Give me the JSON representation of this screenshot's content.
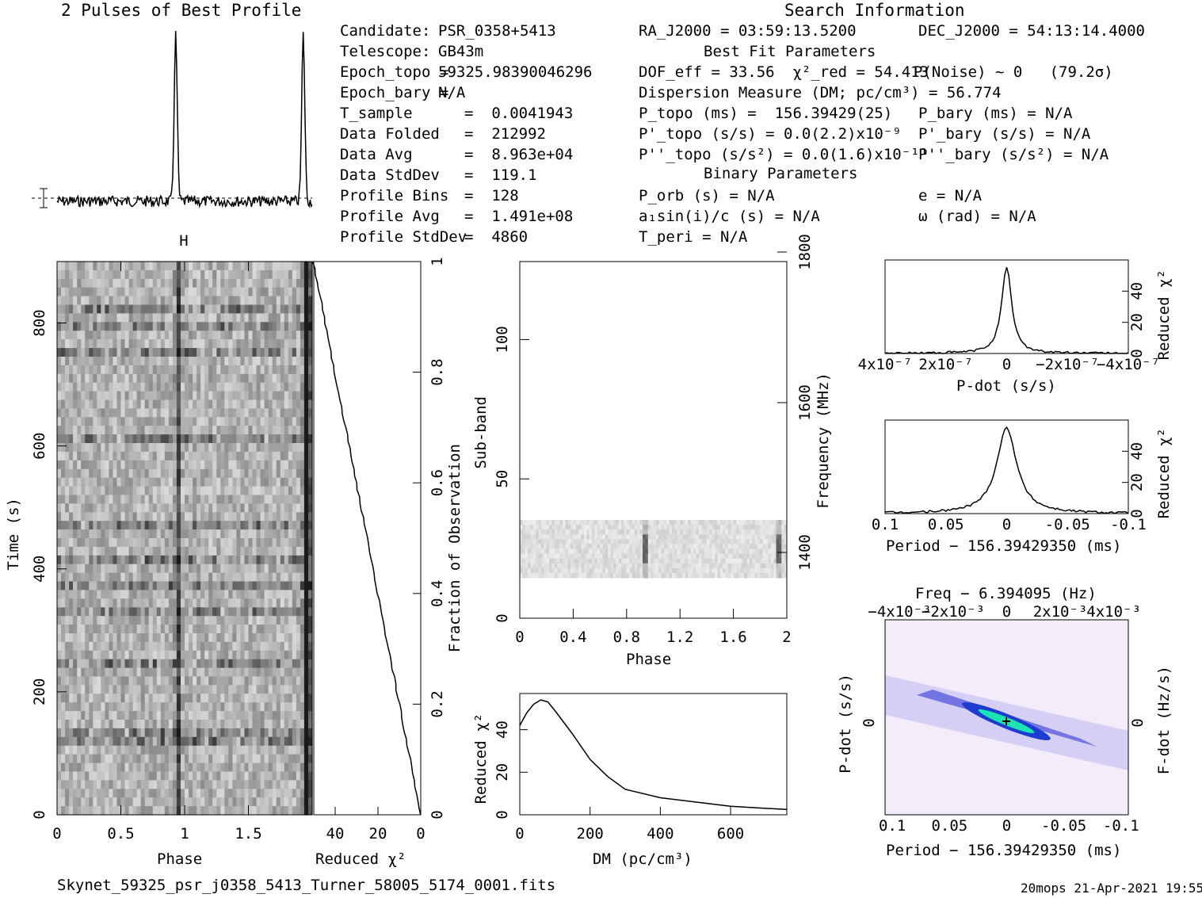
{
  "titles": {
    "profile_title": "2 Pulses of Best Profile",
    "search_title": "Search Information",
    "best_fit": "Best Fit Parameters",
    "binary": "Binary Parameters"
  },
  "info_left": [
    {
      "k": "Candidate:",
      "v": "PSR_0358+5413"
    },
    {
      "k": "Telescope:",
      "v": "GB43m"
    },
    {
      "k": "Epoch_topo =",
      "v": "59325.98390046296"
    },
    {
      "k": "Epoch_bary =",
      "v": "N/A"
    },
    {
      "k": "T_sample",
      "v": "=  0.0041943"
    },
    {
      "k": "Data Folded",
      "v": "=  212992"
    },
    {
      "k": "Data Avg",
      "v": "=  8.963e+04"
    },
    {
      "k": "Data StdDev",
      "v": "=  119.1"
    },
    {
      "k": "Profile Bins",
      "v": "=  128"
    },
    {
      "k": "Profile Avg",
      "v": "=  1.491e+08"
    },
    {
      "k": "Profile StdDev",
      "v": "=  4860"
    }
  ],
  "info_mid": [
    "RA_J2000 = 03:59:13.5200",
    "DOF_eff = 33.56  χ²_red = 54.413",
    "Dispersion Measure (DM; pc/cm³) = 56.774",
    "P_topo (ms) =  156.39429(25)",
    "P'_topo (s/s) = 0.0(2.2)x10⁻⁹",
    "P''_topo (s/s²) = 0.0(1.6)x10⁻¹¹",
    "P_orb (s) = N/A",
    "a₁sin(i)/c (s) = N/A",
    "T_peri = N/A"
  ],
  "info_right": [
    "DEC_J2000 = 54:13:14.4000",
    "P(Noise) ~ 0   (79.2σ)",
    "P_bary (ms) = N/A",
    "P'_bary (s/s) = N/A",
    "P''_bary (s/s²) = N/A",
    "e = N/A",
    "ω (rad) = N/A"
  ],
  "footer": {
    "filename": "Skynet_59325_psr_j0358_5413_Turner_58005_5174_0001.fits",
    "stamp": "20mops 21-Apr-2021 19:55"
  },
  "axes": {
    "time_label": "Time (s)",
    "phase_label": "Phase",
    "redchi_label": "Reduced χ²",
    "frac_label": "Fraction of Observation",
    "subband_label": "Sub-band",
    "freq_label": "Frequency (MHz)",
    "dm_label": "DM (pc/cm³)",
    "pdot_label": "P-dot (s/s)",
    "period_label": "Period − 156.39429350 (ms)",
    "freq_top_label": "Freq − 6.394095 (Hz)",
    "fdot_label": "F-dot (Hz/s)"
  },
  "chart_data": [
    {
      "type": "line",
      "title": "2 Pulses of Best Profile",
      "x": [
        0,
        0.5,
        0.93,
        1.0,
        1.5,
        1.93,
        2.0
      ],
      "peaks_phase": [
        0.93,
        1.93
      ]
    },
    {
      "type": "heatmap",
      "name": "time-phase",
      "xlabel": "Phase",
      "ylabel": "Time (s)",
      "xlim": [
        0,
        2
      ],
      "ylim": [
        0,
        900
      ],
      "xticks": [
        0,
        0.5,
        1,
        1.5
      ],
      "yticks": [
        0,
        200,
        400,
        600,
        800
      ]
    },
    {
      "type": "line",
      "name": "cumulative reduced chi2",
      "xlabel": "Reduced χ²",
      "ylabel": "Fraction of Observation",
      "xlim": [
        50,
        0
      ],
      "ylim": [
        0,
        1
      ],
      "xticks": [
        40,
        20,
        0
      ],
      "yticks": [
        0,
        0.2,
        0.4,
        0.6,
        0.8,
        1
      ]
    },
    {
      "type": "heatmap",
      "name": "subband-phase",
      "xlabel": "Phase",
      "ylabel": "Sub-band",
      "xlim": [
        0,
        2
      ],
      "ylim": [
        0,
        128
      ],
      "xticks": [
        0,
        0.4,
        0.8,
        1.2,
        1.6,
        2
      ],
      "yticks": [
        0,
        50,
        100
      ],
      "freq_ticks": [
        1400,
        1600,
        1800
      ]
    },
    {
      "type": "line",
      "name": "DM curve",
      "xlabel": "DM (pc/cm³)",
      "ylabel": "Reduced χ²",
      "x": [
        0,
        20,
        40,
        60,
        80,
        100,
        150,
        200,
        250,
        300,
        400,
        500,
        600,
        700,
        760
      ],
      "y": [
        42,
        48,
        52,
        54,
        53,
        49,
        38,
        26,
        18,
        12,
        8,
        6,
        4,
        3,
        2.5
      ],
      "xticks": [
        0,
        200,
        400,
        600
      ],
      "yticks": [
        0,
        20,
        40
      ]
    },
    {
      "type": "line",
      "name": "P-dot curve",
      "xlabel": "P-dot (s/s)",
      "ylabel": "Reduced χ²",
      "xticks": [
        "4x10⁻⁷",
        "2x10⁻⁷",
        "0",
        "−2x10⁻⁷",
        "−4x10⁻⁷"
      ],
      "yticks": [
        0,
        20,
        40
      ],
      "peak": 55
    },
    {
      "type": "line",
      "name": "Period curve",
      "xlabel": "Period − 156.39429350 (ms)",
      "ylabel": "Reduced χ²",
      "xticks": [
        0.1,
        0.05,
        0,
        -0.05,
        -0.1
      ],
      "yticks": [
        0,
        20,
        40
      ],
      "peak": 55
    },
    {
      "type": "heatmap",
      "name": "P-Pdot plane",
      "xlabel": "Period − 156.39429350 (ms)",
      "ylabel": "P-dot (s/s)",
      "top_label": "Freq − 6.394095 (Hz)",
      "right_label": "F-dot (Hz/s)",
      "xticks": [
        0.1,
        0.05,
        0,
        -0.05,
        -0.1
      ],
      "top_ticks": [
        "−4x10⁻³",
        "−2x10⁻³",
        "0",
        "2x10⁻³",
        "4x10⁻³"
      ]
    }
  ]
}
